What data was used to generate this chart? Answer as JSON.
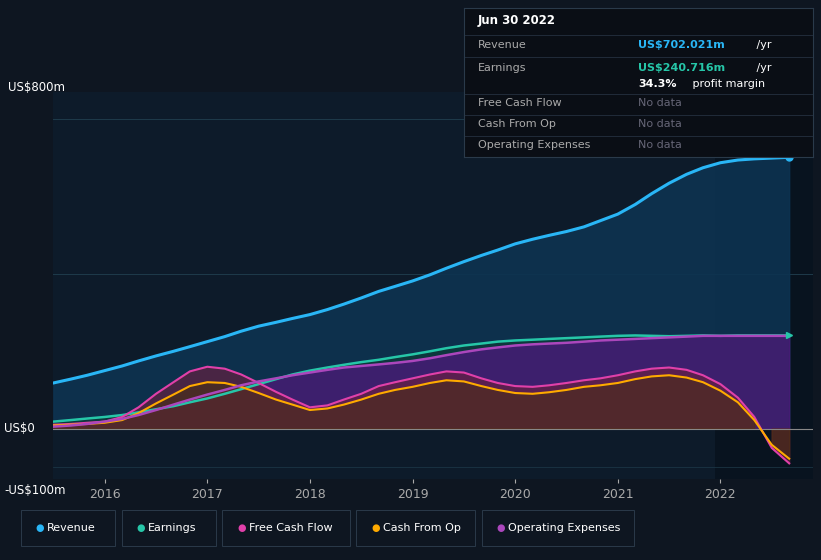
{
  "bg_color": "#0e1621",
  "plot_bg_color": "#0d1b2a",
  "grid_color": "#1e3a4a",
  "y_label_top": "US$800m",
  "y_label_zero": "US$0",
  "y_label_neg": "-US$100m",
  "ylim": [
    -130,
    870
  ],
  "xlim": [
    2015.5,
    2022.9
  ],
  "x_ticks": [
    2016,
    2017,
    2018,
    2019,
    2020,
    2021,
    2022
  ],
  "highlight_x_start": 2021.95,
  "highlight_x_end": 2022.9,
  "revenue_color": "#29b6f6",
  "earnings_color": "#26c6a8",
  "free_cash_flow_color": "#e040aa",
  "cash_from_op_color": "#ffaa00",
  "op_expenses_color": "#ab47bc",
  "revenue_fill_color": "#0d3350",
  "earnings_fill_color": "#0d3b35",
  "op_expenses_fill_color": "#4a1a7a",
  "free_cash_flow_fill_color": "#6a2040",
  "cash_from_op_fill_color": "#4a3010",
  "tooltip_bg": "#0a0e15",
  "tooltip_border": "#2a3a4a",
  "title_text": "Jun 30 2022",
  "revenue_label": "Revenue",
  "revenue_value_colored": "US$702.021m",
  "revenue_value_plain": " /yr",
  "earnings_label": "Earnings",
  "earnings_value_colored": "US$240.716m",
  "earnings_value_plain": " /yr",
  "margin_bold": "34.3%",
  "margin_rest": " profit margin",
  "fcf_label": "Free Cash Flow",
  "fcf_value": "No data",
  "cashop_label": "Cash From Op",
  "cashop_value": "No data",
  "opex_label": "Operating Expenses",
  "opex_value": "No data",
  "revenue_color_tooltip": "#29b6f6",
  "earnings_color_tooltip": "#26c6a8",
  "x_years": [
    2015.5,
    2015.67,
    2015.83,
    2016.0,
    2016.17,
    2016.33,
    2016.5,
    2016.67,
    2016.83,
    2017.0,
    2017.17,
    2017.33,
    2017.5,
    2017.67,
    2017.83,
    2018.0,
    2018.17,
    2018.33,
    2018.5,
    2018.67,
    2018.83,
    2019.0,
    2019.17,
    2019.33,
    2019.5,
    2019.67,
    2019.83,
    2020.0,
    2020.17,
    2020.33,
    2020.5,
    2020.67,
    2020.83,
    2021.0,
    2021.17,
    2021.33,
    2021.5,
    2021.67,
    2021.83,
    2022.0,
    2022.17,
    2022.33,
    2022.5,
    2022.67
  ],
  "revenue": [
    118,
    128,
    138,
    150,
    162,
    175,
    188,
    200,
    212,
    225,
    238,
    252,
    265,
    275,
    285,
    295,
    308,
    322,
    338,
    355,
    368,
    382,
    398,
    415,
    432,
    448,
    462,
    478,
    490,
    500,
    510,
    522,
    538,
    555,
    580,
    608,
    635,
    658,
    675,
    688,
    695,
    698,
    700,
    702
  ],
  "earnings": [
    18,
    22,
    26,
    30,
    35,
    42,
    50,
    58,
    68,
    78,
    90,
    102,
    115,
    128,
    140,
    150,
    158,
    165,
    172,
    178,
    185,
    192,
    200,
    208,
    215,
    220,
    225,
    228,
    230,
    232,
    234,
    236,
    238,
    240,
    241,
    240,
    239,
    240,
    241,
    240,
    241,
    241,
    241,
    241
  ],
  "free_cash_flow": [
    10,
    12,
    15,
    18,
    30,
    55,
    90,
    120,
    148,
    160,
    155,
    140,
    118,
    95,
    75,
    55,
    60,
    75,
    90,
    110,
    120,
    130,
    140,
    148,
    145,
    130,
    118,
    110,
    108,
    112,
    118,
    125,
    130,
    138,
    148,
    155,
    158,
    152,
    138,
    115,
    80,
    30,
    -50,
    -90
  ],
  "cash_from_op": [
    8,
    10,
    12,
    15,
    22,
    40,
    65,
    88,
    110,
    120,
    118,
    108,
    92,
    75,
    62,
    48,
    52,
    62,
    75,
    90,
    100,
    108,
    118,
    125,
    122,
    110,
    100,
    92,
    90,
    94,
    100,
    108,
    112,
    118,
    128,
    135,
    138,
    132,
    120,
    98,
    68,
    22,
    -42,
    -78
  ],
  "op_expenses": [
    5,
    8,
    12,
    18,
    25,
    35,
    48,
    62,
    75,
    88,
    100,
    112,
    122,
    130,
    138,
    145,
    152,
    158,
    162,
    166,
    170,
    175,
    182,
    190,
    198,
    205,
    210,
    215,
    218,
    220,
    222,
    225,
    228,
    230,
    232,
    234,
    236,
    238,
    240,
    240,
    240,
    240,
    240,
    240
  ]
}
